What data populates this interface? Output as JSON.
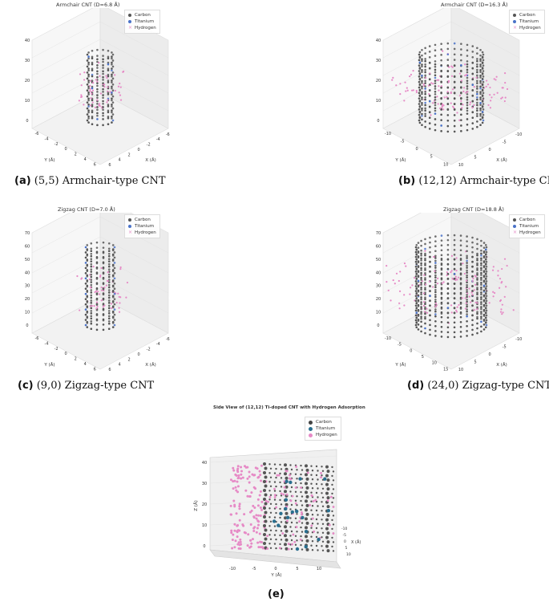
{
  "legend": {
    "carbon": "Carbon",
    "titanium": "Titanium",
    "hydrogen": "Hydrogen"
  },
  "colors": {
    "carbon": "#555555",
    "titanium": "#4a72c8",
    "hydrogen": "#e68ac6",
    "teal": "#2a6f8f"
  },
  "panels": [
    {
      "title": "Armchair CNT (D=6.8 Å)",
      "label": "(a)",
      "caption": "(5,5) Armchair-type CNT",
      "zticks": [
        "0",
        "10",
        "20",
        "30",
        "40"
      ],
      "xticks": [
        "6",
        "4",
        "2",
        "0",
        "-2",
        "-4",
        "-6"
      ],
      "yticks": [
        "-6",
        "-4",
        "-2",
        "0",
        "2",
        "4",
        "6"
      ],
      "xlabel": "X (Å)",
      "ylabel": "Y (Å)"
    },
    {
      "title": "Armchair CNT (D=16.3 Å)",
      "label": "(b)",
      "caption": "(12,12) Armchair-type CNT",
      "zticks": [
        "0",
        "10",
        "20",
        "30",
        "40"
      ],
      "xticks": [
        "10",
        "5",
        "0",
        "-5",
        "-10"
      ],
      "yticks": [
        "-10",
        "-5",
        "0",
        "5",
        "10"
      ],
      "xlabel": "X (Å)",
      "ylabel": "Y (Å)"
    },
    {
      "title": "Zigzag CNT (D=7.0 Å)",
      "label": "(c)",
      "caption": "(9,0) Zigzag-type CNT",
      "zticks": [
        "0",
        "10",
        "20",
        "30",
        "40",
        "50",
        "60",
        "70"
      ],
      "xticks": [
        "6",
        "4",
        "2",
        "0",
        "-2",
        "-4",
        "-6"
      ],
      "yticks": [
        "-6",
        "-4",
        "-2",
        "0",
        "2",
        "4",
        "6"
      ],
      "xlabel": "X (Å)",
      "ylabel": "Y (Å)"
    },
    {
      "title": "Zigzag CNT (D=18.8 Å)",
      "label": "(d)",
      "caption": "(24,0) Zigzag-type CNT",
      "zticks": [
        "0",
        "10",
        "20",
        "30",
        "40",
        "50",
        "60",
        "70"
      ],
      "xticks": [
        "10",
        "5",
        "0",
        "-5",
        "-10"
      ],
      "yticks": [
        "-10",
        "-5",
        "0",
        "5",
        "10",
        "15"
      ],
      "xlabel": "X (Å)",
      "ylabel": "Y (Å)"
    }
  ],
  "side": {
    "title": "Side View of (12,12) Ti-doped CNT with Hydrogen Adsorption",
    "label": "(e)",
    "xticks": [
      "-10",
      "-5",
      "0",
      "5",
      "10"
    ],
    "zticks": [
      "0",
      "10",
      "20",
      "30",
      "40"
    ],
    "yticks": [
      "-10",
      "-5",
      "0",
      "5",
      "10"
    ],
    "xlabel": "Y (Å)",
    "zlabel": "Z (Å)",
    "ylabel": "X (Å)"
  }
}
